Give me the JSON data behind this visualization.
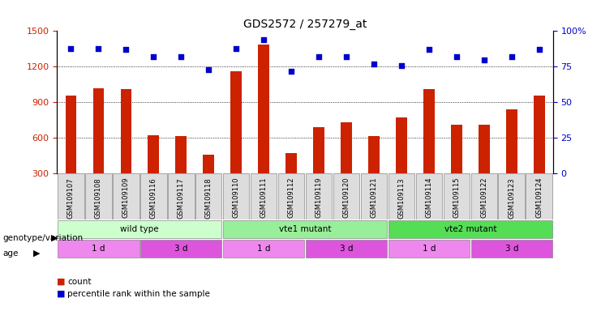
{
  "title": "GDS2572 / 257279_at",
  "samples": [
    "GSM109107",
    "GSM109108",
    "GSM109109",
    "GSM109116",
    "GSM109117",
    "GSM109118",
    "GSM109110",
    "GSM109111",
    "GSM109112",
    "GSM109119",
    "GSM109120",
    "GSM109121",
    "GSM109113",
    "GSM109114",
    "GSM109115",
    "GSM109122",
    "GSM109123",
    "GSM109124"
  ],
  "counts": [
    960,
    1020,
    1010,
    620,
    615,
    460,
    1160,
    1390,
    470,
    690,
    730,
    615,
    770,
    1010,
    710,
    710,
    840,
    960
  ],
  "percentiles": [
    88,
    88,
    87,
    82,
    82,
    73,
    88,
    94,
    72,
    82,
    82,
    77,
    76,
    87,
    82,
    80,
    82,
    87
  ],
  "bar_color": "#CC2200",
  "dot_color": "#0000CC",
  "ylim_left": [
    300,
    1500
  ],
  "ylim_right": [
    0,
    100
  ],
  "yticks_left": [
    300,
    600,
    900,
    1200,
    1500
  ],
  "yticks_right": [
    0,
    25,
    50,
    75,
    100
  ],
  "grid_values": [
    600,
    900,
    1200
  ],
  "genotype_groups": [
    {
      "label": "wild type",
      "start": 0,
      "end": 6,
      "color": "#CCFFCC"
    },
    {
      "label": "vte1 mutant",
      "start": 6,
      "end": 12,
      "color": "#99EE99"
    },
    {
      "label": "vte2 mutant",
      "start": 12,
      "end": 18,
      "color": "#55DD55"
    }
  ],
  "age_groups": [
    {
      "label": "1 d",
      "start": 0,
      "end": 3,
      "color": "#EE88EE"
    },
    {
      "label": "3 d",
      "start": 3,
      "end": 6,
      "color": "#DD55DD"
    },
    {
      "label": "1 d",
      "start": 6,
      "end": 9,
      "color": "#EE88EE"
    },
    {
      "label": "3 d",
      "start": 9,
      "end": 12,
      "color": "#DD55DD"
    },
    {
      "label": "1 d",
      "start": 12,
      "end": 15,
      "color": "#EE88EE"
    },
    {
      "label": "3 d",
      "start": 15,
      "end": 18,
      "color": "#DD55DD"
    }
  ]
}
